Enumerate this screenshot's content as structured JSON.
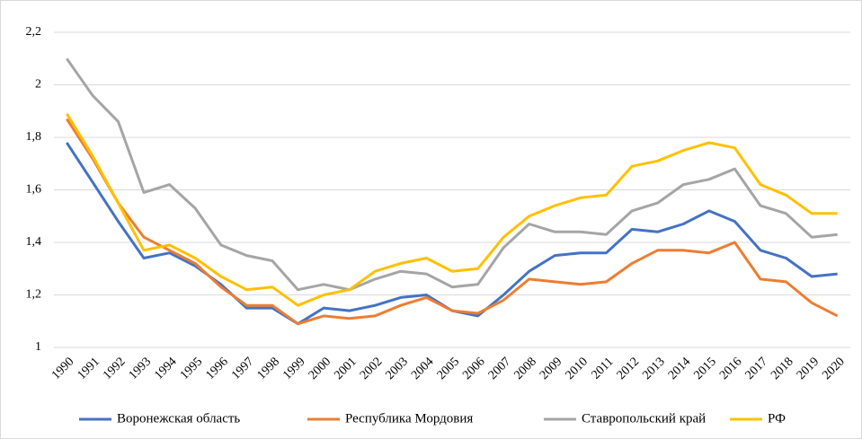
{
  "chart_data": {
    "type": "line",
    "categories": [
      "1990",
      "1991",
      "1992",
      "1993",
      "1994",
      "1995",
      "1996",
      "1997",
      "1998",
      "1999",
      "2000",
      "2001",
      "2002",
      "2003",
      "2004",
      "2005",
      "2006",
      "2007",
      "2008",
      "2009",
      "2010",
      "2011",
      "2012",
      "2013",
      "2014",
      "2015",
      "2016",
      "2017",
      "2018",
      "2019",
      "2020"
    ],
    "series": [
      {
        "name": "Воронежская область",
        "color": "#4472c4",
        "values": [
          1.78,
          1.63,
          1.48,
          1.34,
          1.36,
          1.31,
          1.24,
          1.15,
          1.15,
          1.09,
          1.15,
          1.14,
          1.16,
          1.19,
          1.2,
          1.14,
          1.12,
          1.2,
          1.29,
          1.35,
          1.36,
          1.36,
          1.45,
          1.44,
          1.47,
          1.52,
          1.48,
          1.37,
          1.34,
          1.27,
          1.28
        ]
      },
      {
        "name": "Республика Мордовия",
        "color": "#ed7d31",
        "values": [
          1.87,
          1.72,
          1.55,
          1.42,
          1.37,
          1.32,
          1.23,
          1.16,
          1.16,
          1.09,
          1.12,
          1.11,
          1.12,
          1.16,
          1.19,
          1.14,
          1.13,
          1.18,
          1.26,
          1.25,
          1.24,
          1.25,
          1.32,
          1.37,
          1.37,
          1.36,
          1.4,
          1.26,
          1.25,
          1.17,
          1.12
        ]
      },
      {
        "name": "Ставропольский край",
        "color": "#a5a5a5",
        "values": [
          2.1,
          1.96,
          1.86,
          1.59,
          1.62,
          1.53,
          1.39,
          1.35,
          1.33,
          1.22,
          1.24,
          1.22,
          1.26,
          1.29,
          1.28,
          1.23,
          1.24,
          1.38,
          1.47,
          1.44,
          1.44,
          1.43,
          1.52,
          1.55,
          1.62,
          1.64,
          1.68,
          1.54,
          1.51,
          1.42,
          1.43
        ]
      },
      {
        "name": "РФ",
        "color": "#ffc000",
        "values": [
          1.89,
          1.73,
          1.55,
          1.37,
          1.39,
          1.34,
          1.27,
          1.22,
          1.23,
          1.16,
          1.2,
          1.22,
          1.29,
          1.32,
          1.34,
          1.29,
          1.3,
          1.42,
          1.5,
          1.54,
          1.57,
          1.58,
          1.69,
          1.71,
          1.75,
          1.78,
          1.76,
          1.62,
          1.58,
          1.51,
          1.51
        ]
      }
    ],
    "ylim": [
      1,
      2.2
    ],
    "yticks": [
      1,
      {
        "value": 1.2,
        "label": "1,2"
      },
      {
        "value": 1.4,
        "label": "1,4"
      },
      {
        "value": 1.6,
        "label": "1,6"
      },
      {
        "value": 1.8,
        "label": "1,8"
      },
      2,
      {
        "value": 2.2,
        "label": "2,2"
      }
    ],
    "grid": true
  }
}
